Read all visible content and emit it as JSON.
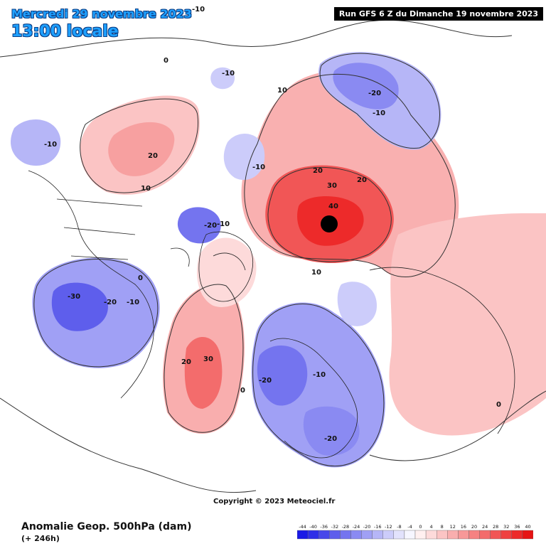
{
  "header": {
    "date": "Mercredi 29 novembre 2023",
    "local_time": "13:00 locale",
    "run": "Run GFS 6 Z du Dimanche 19 novembre 2023"
  },
  "footer": {
    "parameter": "Anomalie Geop. 500hPa (dam)",
    "lead_time": "(+ 246h)",
    "copyright": "Copyright © 2023 Meteociel.fr"
  },
  "scale": {
    "ticks": [
      "-44",
      "-40",
      "-36",
      "-32",
      "-28",
      "-24",
      "-20",
      "-16",
      "-12",
      "-8",
      "-4",
      "0",
      "4",
      "8",
      "12",
      "16",
      "20",
      "24",
      "28",
      "32",
      "36",
      "40"
    ],
    "colors": [
      "#1a1ae6",
      "#2f2fe8",
      "#4848ea",
      "#5e5eec",
      "#7474ef",
      "#8a8af2",
      "#a0a0f5",
      "#b6b6f7",
      "#ccccfa",
      "#e2e2fc",
      "#f6f6ff",
      "#fff0f0",
      "#fddada",
      "#fbc4c4",
      "#f9aeae",
      "#f79898",
      "#f58282",
      "#f36c6c",
      "#f15656",
      "#ef4040",
      "#ed2a2a",
      "#e61414"
    ]
  },
  "contour_labels": [
    "-10",
    "0",
    "-10",
    "10",
    "-20",
    "-10",
    "-10",
    "20",
    "10",
    "-10",
    "20",
    "30",
    "20",
    "40",
    "-20",
    "-10",
    "0",
    "-30",
    "-20",
    "-10",
    "10",
    "20",
    "30",
    "0",
    "-20",
    "-10",
    "-20",
    "0"
  ]
}
